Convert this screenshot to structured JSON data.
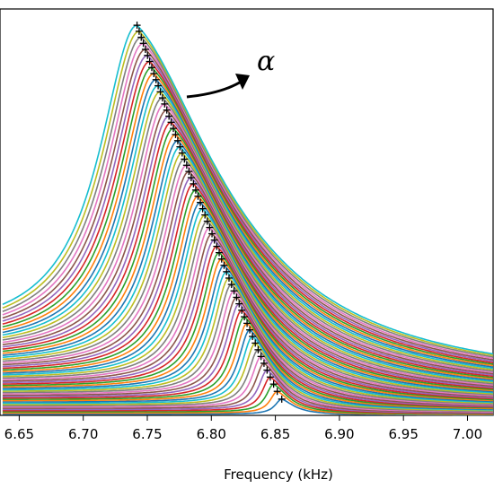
{
  "chart_data": {
    "type": "line",
    "title": "",
    "xlabel": "Frequency (kHz)",
    "ylabel": "",
    "xlim": [
      6.635,
      7.02
    ],
    "ylim": [
      0,
      1
    ],
    "grid": false,
    "legend": "none",
    "x_ticks": [
      6.65,
      6.7,
      6.75,
      6.8,
      6.85,
      6.9,
      6.95,
      7.0
    ],
    "x_tick_labels": [
      "6.65",
      "6.70",
      "6.75",
      "6.80",
      "6.85",
      "6.90",
      "6.95",
      "7.00"
    ],
    "series_count": 60,
    "colors": [
      "#1f77b4",
      "#ff7f0e",
      "#2ca02c",
      "#d62728",
      "#9467bd",
      "#8c564b",
      "#e377c2",
      "#7f7f7f",
      "#bcbd22",
      "#17becf"
    ],
    "peaks": {
      "marker": "+",
      "color": "#000000",
      "first_peak": {
        "frequency": 6.855,
        "amplitude": 0.04
      },
      "last_peak": {
        "frequency": 6.742,
        "amplitude": 0.96
      },
      "count": 60
    },
    "annotation": {
      "text": "α",
      "arrow": true,
      "near_frequency": 6.775,
      "near_amplitude": 0.78
    }
  }
}
